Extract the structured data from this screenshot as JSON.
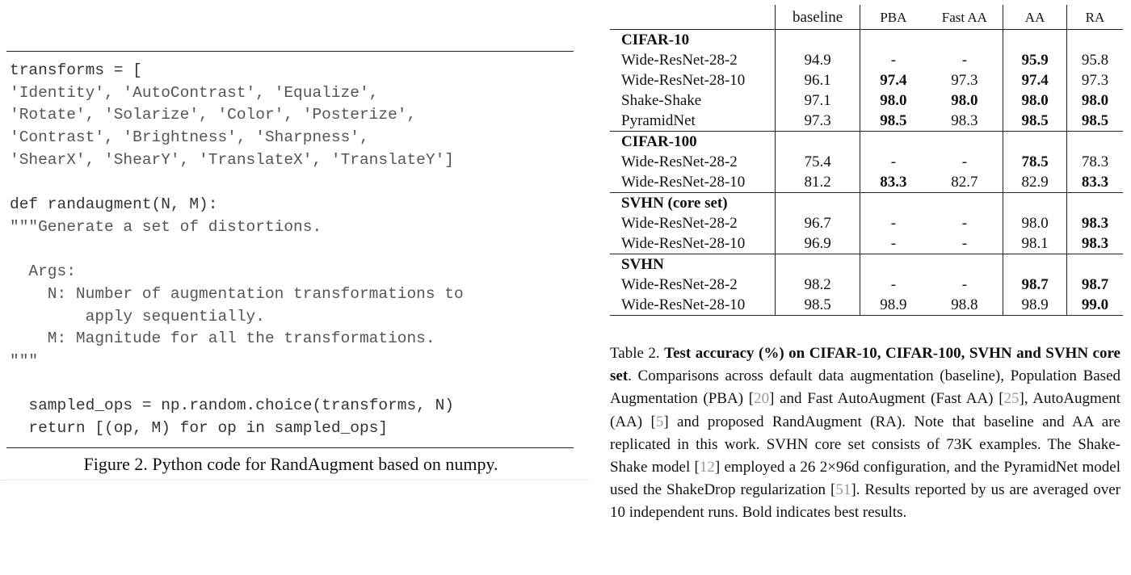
{
  "figure": {
    "code_lines": [
      [
        {
          "t": "transforms = [",
          "s": 0
        }
      ],
      [
        {
          "t": "'Identity', 'AutoContrast', 'Equalize',",
          "s": 1
        }
      ],
      [
        {
          "t": "'Rotate', 'Solarize', 'Color', 'Posterize',",
          "s": 1
        }
      ],
      [
        {
          "t": "'Contrast', 'Brightness', 'Sharpness',",
          "s": 1
        }
      ],
      [
        {
          "t": "'ShearX', 'ShearY', 'TranslateX', 'TranslateY']",
          "s": 1
        }
      ],
      [
        {
          "t": "",
          "s": 0
        }
      ],
      [
        {
          "t": "def randaugment(N, M):",
          "s": 0
        }
      ],
      [
        {
          "t": "\"\"\"Generate a set of distortions.",
          "s": 1
        }
      ],
      [
        {
          "t": "",
          "s": 0
        }
      ],
      [
        {
          "t": "  Args:",
          "s": 1
        }
      ],
      [
        {
          "t": "    N: Number of augmentation transformations to",
          "s": 1
        }
      ],
      [
        {
          "t": "        apply sequentially.",
          "s": 1
        }
      ],
      [
        {
          "t": "    M: Magnitude for all the transformations.",
          "s": 1
        }
      ],
      [
        {
          "t": "\"\"\"",
          "s": 1
        }
      ],
      [
        {
          "t": "",
          "s": 0
        }
      ],
      [
        {
          "t": "  sampled_ops = np.random.choice(transforms, N)",
          "s": 0
        }
      ],
      [
        {
          "t": "  return [(op, M) for op in sampled_ops]",
          "s": 0
        }
      ]
    ],
    "caption": "Figure 2. Python code for RandAugment based on numpy."
  },
  "table": {
    "headers": [
      "",
      "baseline",
      "PBA",
      "Fast AA",
      "AA",
      "RA"
    ],
    "sections": [
      {
        "name": "CIFAR-10",
        "rows": [
          {
            "model": "Wide-ResNet-28-2",
            "cells": [
              [
                "94.9",
                0
              ],
              [
                "-",
                0
              ],
              [
                "-",
                0
              ],
              [
                "95.9",
                1
              ],
              [
                "95.8",
                0
              ]
            ]
          },
          {
            "model": "Wide-ResNet-28-10",
            "cells": [
              [
                "96.1",
                0
              ],
              [
                "97.4",
                1
              ],
              [
                "97.3",
                0
              ],
              [
                "97.4",
                1
              ],
              [
                "97.3",
                0
              ]
            ]
          },
          {
            "model": "Shake-Shake",
            "cells": [
              [
                "97.1",
                0
              ],
              [
                "98.0",
                1
              ],
              [
                "98.0",
                1
              ],
              [
                "98.0",
                1
              ],
              [
                "98.0",
                1
              ]
            ]
          },
          {
            "model": "PyramidNet",
            "cells": [
              [
                "97.3",
                0
              ],
              [
                "98.5",
                1
              ],
              [
                "98.3",
                0
              ],
              [
                "98.5",
                1
              ],
              [
                "98.5",
                1
              ]
            ]
          }
        ]
      },
      {
        "name": "CIFAR-100",
        "rows": [
          {
            "model": "Wide-ResNet-28-2",
            "cells": [
              [
                "75.4",
                0
              ],
              [
                "-",
                0
              ],
              [
                "-",
                0
              ],
              [
                "78.5",
                1
              ],
              [
                "78.3",
                0
              ]
            ]
          },
          {
            "model": "Wide-ResNet-28-10",
            "cells": [
              [
                "81.2",
                0
              ],
              [
                "83.3",
                1
              ],
              [
                "82.7",
                0
              ],
              [
                "82.9",
                0
              ],
              [
                "83.3",
                1
              ]
            ]
          }
        ]
      },
      {
        "name": "SVHN (core set)",
        "rows": [
          {
            "model": "Wide-ResNet-28-2",
            "cells": [
              [
                "96.7",
                0
              ],
              [
                "-",
                0
              ],
              [
                "-",
                0
              ],
              [
                "98.0",
                0
              ],
              [
                "98.3",
                1
              ]
            ]
          },
          {
            "model": "Wide-ResNet-28-10",
            "cells": [
              [
                "96.9",
                0
              ],
              [
                "-",
                0
              ],
              [
                "-",
                0
              ],
              [
                "98.1",
                0
              ],
              [
                "98.3",
                1
              ]
            ]
          }
        ]
      },
      {
        "name": "SVHN",
        "rows": [
          {
            "model": "Wide-ResNet-28-2",
            "cells": [
              [
                "98.2",
                0
              ],
              [
                "-",
                0
              ],
              [
                "-",
                0
              ],
              [
                "98.7",
                1
              ],
              [
                "98.7",
                1
              ]
            ]
          },
          {
            "model": "Wide-ResNet-28-10",
            "cells": [
              [
                "98.5",
                0
              ],
              [
                "98.9",
                0
              ],
              [
                "98.8",
                0
              ],
              [
                "98.9",
                0
              ],
              [
                "99.0",
                1
              ]
            ]
          }
        ]
      }
    ],
    "caption_parts": [
      {
        "t": "Table 2. ",
        "k": "n"
      },
      {
        "t": "Test accuracy (%) on CIFAR-10, CIFAR-100, SVHN and SVHN core set",
        "k": "b"
      },
      {
        "t": ". Comparisons across default data augmentation (baseline), Population Based Augmentation (PBA) [",
        "k": "n"
      },
      {
        "t": "20",
        "k": "c"
      },
      {
        "t": "] and Fast AutoAugment (Fast AA) [",
        "k": "n"
      },
      {
        "t": "25",
        "k": "c"
      },
      {
        "t": "], AutoAugment (AA) [",
        "k": "n"
      },
      {
        "t": "5",
        "k": "c"
      },
      {
        "t": "] and proposed RandAugment (RA). Note that baseline and AA are replicated in this work. SVHN core set consists of 73K examples. The Shake-Shake model [",
        "k": "n"
      },
      {
        "t": "12",
        "k": "c"
      },
      {
        "t": "] employed a 26 2×96d configuration, and the PyramidNet model used the ShakeDrop regularization [",
        "k": "n"
      },
      {
        "t": "51",
        "k": "c"
      },
      {
        "t": "]. Results reported by us are averaged over 10 independent runs. Bold indicates best results.",
        "k": "n"
      }
    ]
  }
}
